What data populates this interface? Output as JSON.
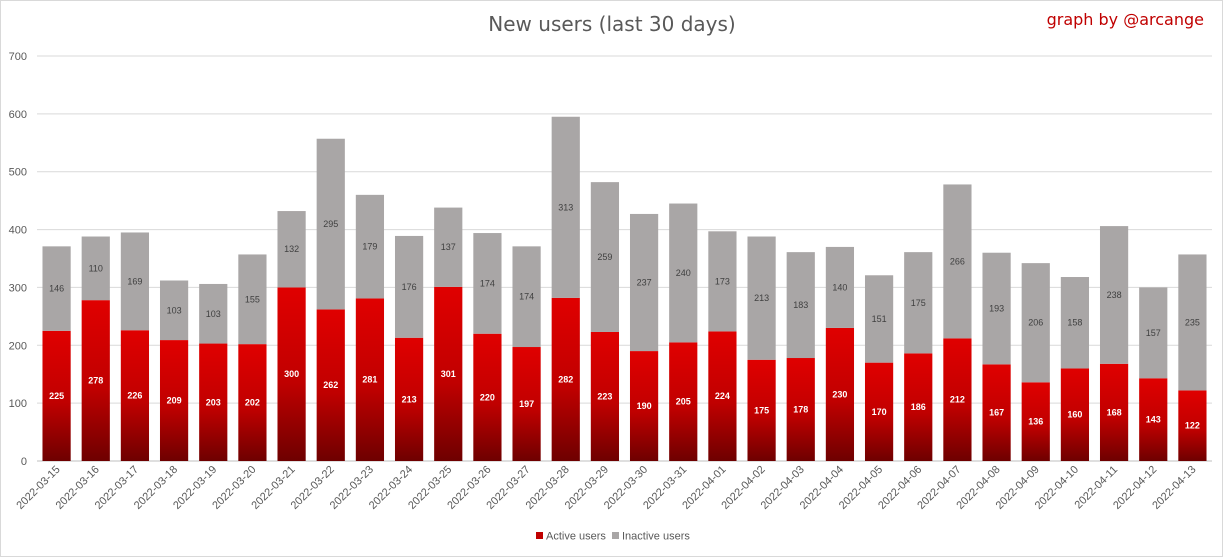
{
  "chart_data": {
    "type": "bar",
    "stacked": true,
    "title": "New users (last 30 days)",
    "credit": "graph by @arcange",
    "xlabel": "",
    "ylabel": "",
    "ylim": [
      0,
      700
    ],
    "yticks": [
      0,
      100,
      200,
      300,
      400,
      500,
      600,
      700
    ],
    "grid": true,
    "legend_position": "bottom",
    "categories": [
      "2022-03-15",
      "2022-03-16",
      "2022-03-17",
      "2022-03-18",
      "2022-03-19",
      "2022-03-20",
      "2022-03-21",
      "2022-03-22",
      "2022-03-23",
      "2022-03-24",
      "2022-03-25",
      "2022-03-26",
      "2022-03-27",
      "2022-03-28",
      "2022-03-29",
      "2022-03-30",
      "2022-03-31",
      "2022-04-01",
      "2022-04-02",
      "2022-04-03",
      "2022-04-04",
      "2022-04-05",
      "2022-04-06",
      "2022-04-07",
      "2022-04-08",
      "2022-04-09",
      "2022-04-10",
      "2022-04-11",
      "2022-04-12",
      "2022-04-13"
    ],
    "series": [
      {
        "name": "Active users",
        "color": "#c00000",
        "values": [
          225,
          278,
          226,
          209,
          203,
          202,
          300,
          262,
          281,
          213,
          301,
          220,
          197,
          282,
          223,
          190,
          205,
          224,
          175,
          178,
          230,
          170,
          186,
          212,
          167,
          136,
          160,
          168,
          143,
          122
        ]
      },
      {
        "name": "Inactive users",
        "color": "#a9a6a6",
        "values": [
          146,
          110,
          169,
          103,
          103,
          155,
          132,
          295,
          179,
          176,
          137,
          174,
          174,
          313,
          259,
          237,
          240,
          173,
          213,
          183,
          140,
          151,
          175,
          266,
          193,
          206,
          158,
          238,
          157,
          235
        ]
      }
    ]
  }
}
